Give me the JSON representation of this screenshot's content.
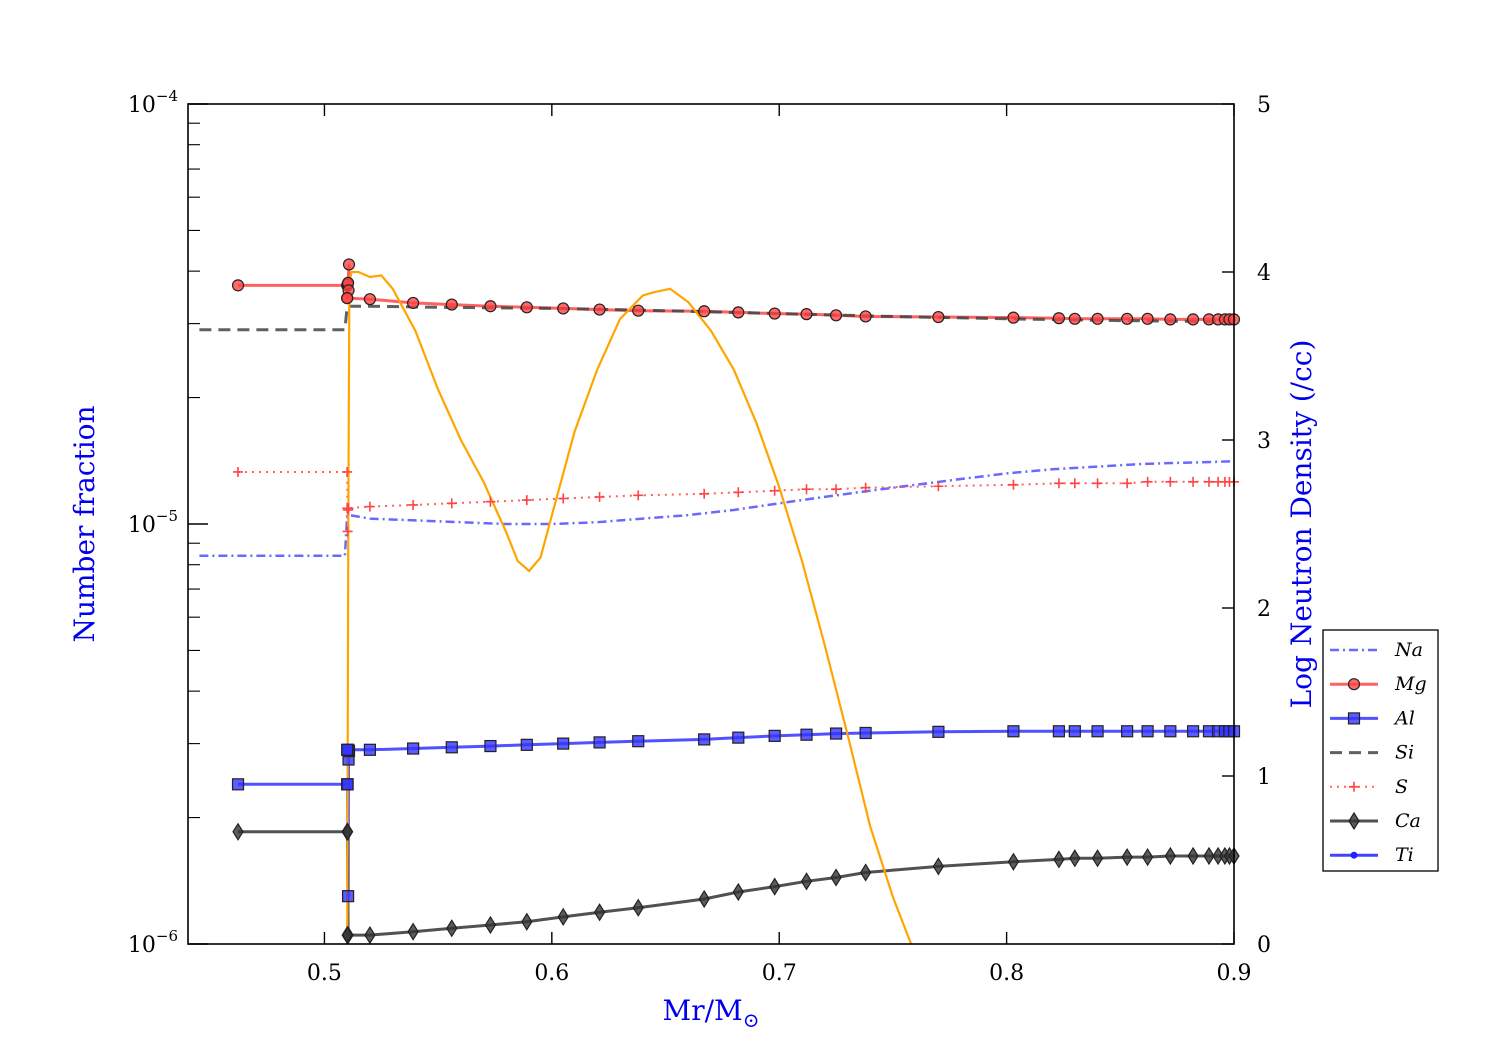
{
  "chart_data": {
    "type": "line",
    "title": "",
    "xlabel": "Mr/M",
    "xlabel_sub": "⊙",
    "ylabel_left": "Number fraction",
    "ylabel_right": "Log Neutron Density (/cc)",
    "xlim": [
      0.44,
      0.9
    ],
    "ylim_left": [
      1e-06,
      0.0001
    ],
    "yscale_left": "log",
    "ylim_right": [
      0,
      5
    ],
    "x_ticks": [
      {
        "value": 0.5,
        "label": "0.5"
      },
      {
        "value": 0.6,
        "label": "0.6"
      },
      {
        "value": 0.7,
        "label": "0.7"
      },
      {
        "value": 0.8,
        "label": "0.8"
      },
      {
        "value": 0.9,
        "label": "0.9"
      }
    ],
    "y_left_ticks": [
      {
        "value": 0.0001,
        "base": "10",
        "exp": "−4"
      },
      {
        "value": 1e-05,
        "base": "10",
        "exp": "−5"
      },
      {
        "value": 1e-06,
        "base": "10",
        "exp": "−6"
      }
    ],
    "y_right_ticks": [
      {
        "value": 0,
        "label": "0"
      },
      {
        "value": 1,
        "label": "1"
      },
      {
        "value": 2,
        "label": "2"
      },
      {
        "value": 3,
        "label": "3"
      },
      {
        "value": 4,
        "label": "4"
      },
      {
        "value": 5,
        "label": "5"
      }
    ],
    "legend_position": "lower-right, outside plot",
    "series": [
      {
        "name": "Na",
        "color": "#4f4fff",
        "style": "dashdot",
        "marker": "none",
        "axis": "left",
        "x": [
          0.445,
          0.508,
          0.509,
          0.51,
          0.511,
          0.52,
          0.54,
          0.56,
          0.58,
          0.6,
          0.62,
          0.64,
          0.66,
          0.68,
          0.7,
          0.72,
          0.74,
          0.76,
          0.78,
          0.8,
          0.82,
          0.84,
          0.86,
          0.88,
          0.9
        ],
        "y": [
          8.4e-06,
          8.4e-06,
          8.4e-06,
          1.05e-05,
          1.05e-05,
          1.03e-05,
          1.02e-05,
          1.01e-05,
          1e-05,
          1e-05,
          1.01e-05,
          1.03e-05,
          1.05e-05,
          1.08e-05,
          1.12e-05,
          1.16e-05,
          1.2e-05,
          1.24e-05,
          1.28e-05,
          1.32e-05,
          1.35e-05,
          1.37e-05,
          1.39e-05,
          1.4e-05,
          1.41e-05
        ]
      },
      {
        "name": "Mg",
        "color": "#ff4444",
        "style": "solid",
        "marker": "circle",
        "axis": "left",
        "x": [
          0.462,
          0.51,
          0.5102,
          0.5104,
          0.5106,
          0.5108,
          0.51,
          0.51,
          0.52,
          0.539,
          0.556,
          0.573,
          0.589,
          0.605,
          0.621,
          0.638,
          0.667,
          0.682,
          0.698,
          0.712,
          0.725,
          0.738,
          0.77,
          0.803,
          0.823,
          0.83,
          0.84,
          0.853,
          0.862,
          0.872,
          0.882,
          0.889,
          0.893,
          0.896,
          0.898,
          0.9
        ],
        "y": [
          3.7e-05,
          3.7e-05,
          3.72e-05,
          3.75e-05,
          3.6e-05,
          4.15e-05,
          3.45e-05,
          3.45e-05,
          3.43e-05,
          3.36e-05,
          3.33e-05,
          3.3e-05,
          3.28e-05,
          3.26e-05,
          3.24e-05,
          3.22e-05,
          3.21e-05,
          3.19e-05,
          3.17e-05,
          3.16e-05,
          3.14e-05,
          3.12e-05,
          3.11e-05,
          3.1e-05,
          3.09e-05,
          3.08e-05,
          3.08e-05,
          3.08e-05,
          3.08e-05,
          3.07e-05,
          3.07e-05,
          3.07e-05,
          3.07e-05,
          3.07e-05,
          3.07e-05,
          3.07e-05
        ]
      },
      {
        "name": "Al",
        "color": "#3333ff",
        "style": "solid",
        "marker": "square",
        "axis": "left",
        "x": [
          0.462,
          0.51,
          0.5102,
          0.5104,
          0.5106,
          0.5108,
          0.5105,
          0.51,
          0.52,
          0.539,
          0.556,
          0.573,
          0.589,
          0.605,
          0.621,
          0.638,
          0.667,
          0.682,
          0.698,
          0.712,
          0.725,
          0.738,
          0.77,
          0.803,
          0.823,
          0.83,
          0.84,
          0.853,
          0.862,
          0.872,
          0.882,
          0.889,
          0.893,
          0.896,
          0.898,
          0.9
        ],
        "y": [
          2.4e-06,
          2.4e-06,
          2.4e-06,
          1.3e-06,
          2.75e-06,
          2.88e-06,
          2.9e-06,
          2.9e-06,
          2.9e-06,
          2.92e-06,
          2.94e-06,
          2.96e-06,
          2.98e-06,
          3e-06,
          3.02e-06,
          3.04e-06,
          3.07e-06,
          3.1e-06,
          3.13e-06,
          3.15e-06,
          3.17e-06,
          3.18e-06,
          3.2e-06,
          3.21e-06,
          3.21e-06,
          3.21e-06,
          3.21e-06,
          3.21e-06,
          3.21e-06,
          3.21e-06,
          3.21e-06,
          3.21e-06,
          3.21e-06,
          3.21e-06,
          3.21e-06,
          3.21e-06
        ]
      },
      {
        "name": "Si",
        "color": "#444444",
        "style": "dashed",
        "marker": "none",
        "axis": "left",
        "x": [
          0.445,
          0.508,
          0.509,
          0.51,
          0.511,
          0.52,
          0.55,
          0.6,
          0.65,
          0.7,
          0.75,
          0.8,
          0.85,
          0.9
        ],
        "y": [
          2.9e-05,
          2.9e-05,
          2.9e-05,
          3.3e-05,
          3.3e-05,
          3.3e-05,
          3.28e-05,
          3.26e-05,
          3.22e-05,
          3.17e-05,
          3.12e-05,
          3.08e-05,
          3.05e-05,
          3.03e-05
        ]
      },
      {
        "name": "S",
        "color": "#ff4444",
        "style": "dotted",
        "marker": "plus",
        "axis": "left",
        "x": [
          0.462,
          0.51,
          0.5102,
          0.5104,
          0.5106,
          0.51,
          0.52,
          0.539,
          0.556,
          0.573,
          0.589,
          0.605,
          0.621,
          0.638,
          0.667,
          0.682,
          0.698,
          0.712,
          0.725,
          0.738,
          0.77,
          0.803,
          0.823,
          0.83,
          0.84,
          0.853,
          0.862,
          0.872,
          0.882,
          0.889,
          0.893,
          0.896,
          0.898,
          0.9
        ],
        "y": [
          1.33e-05,
          1.33e-05,
          9.6e-06,
          1.08e-05,
          1.09e-05,
          1.09e-05,
          1.1e-05,
          1.11e-05,
          1.12e-05,
          1.13e-05,
          1.14e-05,
          1.15e-05,
          1.16e-05,
          1.17e-05,
          1.18e-05,
          1.19e-05,
          1.2e-05,
          1.21e-05,
          1.21e-05,
          1.22e-05,
          1.23e-05,
          1.24e-05,
          1.25e-05,
          1.25e-05,
          1.25e-05,
          1.25e-05,
          1.26e-05,
          1.26e-05,
          1.26e-05,
          1.26e-05,
          1.26e-05,
          1.26e-05,
          1.26e-05,
          1.26e-05
        ]
      },
      {
        "name": "Ca",
        "color": "#333333",
        "style": "solid",
        "marker": "diamond",
        "axis": "left",
        "x": [
          0.462,
          0.51,
          0.5102,
          0.5104,
          0.51,
          0.52,
          0.539,
          0.556,
          0.573,
          0.589,
          0.605,
          0.621,
          0.638,
          0.667,
          0.682,
          0.698,
          0.712,
          0.725,
          0.738,
          0.77,
          0.803,
          0.823,
          0.83,
          0.84,
          0.853,
          0.862,
          0.872,
          0.882,
          0.889,
          0.893,
          0.896,
          0.898,
          0.9
        ],
        "y": [
          1.85e-06,
          1.85e-06,
          1.85e-06,
          1.05e-06,
          1.05e-06,
          1.05e-06,
          1.07e-06,
          1.09e-06,
          1.11e-06,
          1.13e-06,
          1.16e-06,
          1.19e-06,
          1.22e-06,
          1.28e-06,
          1.33e-06,
          1.37e-06,
          1.41e-06,
          1.44e-06,
          1.48e-06,
          1.53e-06,
          1.57e-06,
          1.59e-06,
          1.6e-06,
          1.6e-06,
          1.61e-06,
          1.61e-06,
          1.62e-06,
          1.62e-06,
          1.62e-06,
          1.62e-06,
          1.62e-06,
          1.62e-06,
          1.62e-06
        ]
      },
      {
        "name": "Ti",
        "color": "#2222ff",
        "style": "solid",
        "marker": "dot",
        "axis": "left",
        "x": [],
        "y": []
      },
      {
        "name": "",
        "color": "#ffa500",
        "style": "solid",
        "marker": "none",
        "axis": "right",
        "x": [
          0.51,
          0.5105,
          0.511,
          0.512,
          0.515,
          0.52,
          0.525,
          0.53,
          0.54,
          0.55,
          0.56,
          0.57,
          0.58,
          0.585,
          0.59,
          0.595,
          0.6,
          0.61,
          0.62,
          0.63,
          0.64,
          0.645,
          0.652,
          0.66,
          0.67,
          0.68,
          0.69,
          0.7,
          0.71,
          0.72,
          0.73,
          0.74,
          0.75,
          0.758
        ],
        "y": [
          0,
          2.5,
          3.95,
          4.0,
          4.0,
          3.97,
          3.98,
          3.9,
          3.65,
          3.3,
          3.0,
          2.75,
          2.45,
          2.28,
          2.22,
          2.3,
          2.55,
          3.05,
          3.42,
          3.72,
          3.86,
          3.88,
          3.9,
          3.82,
          3.65,
          3.42,
          3.1,
          2.72,
          2.28,
          1.78,
          1.25,
          0.7,
          0.28,
          0
        ]
      }
    ]
  }
}
